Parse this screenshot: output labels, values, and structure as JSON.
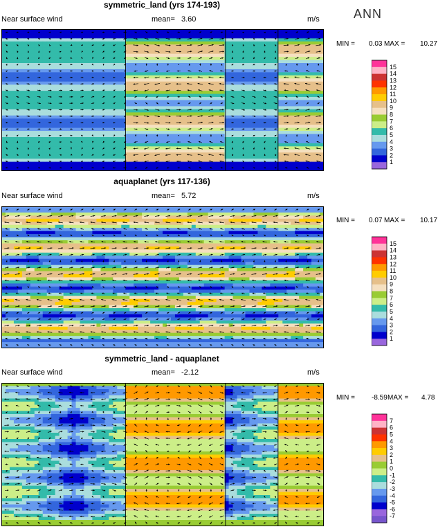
{
  "season": "ANN",
  "panels": [
    {
      "title": "symmetric_land (yrs 174-193)",
      "field": "Near surface wind",
      "mean_label": "mean=",
      "mean": "3.60",
      "units": "m/s",
      "min_label": "MIN =",
      "min": "0.03",
      "max_label": "MAX =",
      "max": "10.27",
      "levels": [
        "15",
        "14",
        "13",
        "12",
        "11",
        "10",
        "9",
        "8",
        "7",
        "6",
        "5",
        "4",
        "3",
        "2",
        "1"
      ],
      "colors": [
        "#ff3399",
        "#ffb3c6",
        "#cc3333",
        "#ff3300",
        "#ff9900",
        "#ffcc00",
        "#e6c08a",
        "#f5e0c0",
        "#99cc33",
        "#ccee88",
        "#33bbaa",
        "#aadddd",
        "#6699ee",
        "#3366dd",
        "#0000cc",
        "#9966dd"
      ]
    },
    {
      "title": "aquaplanet (yrs 117-136)",
      "field": "Near surface wind",
      "mean_label": "mean=",
      "mean": "5.72",
      "units": "m/s",
      "min_label": "MIN =",
      "min": "0.07",
      "max_label": "MAX =",
      "max": "10.17",
      "levels": [
        "15",
        "14",
        "13",
        "12",
        "11",
        "10",
        "9",
        "8",
        "7",
        "6",
        "5",
        "4",
        "3",
        "2",
        "1"
      ],
      "colors": [
        "#ff3399",
        "#ffb3c6",
        "#cc3333",
        "#ff3300",
        "#ff9900",
        "#ffcc00",
        "#e6c08a",
        "#f5e0c0",
        "#99cc33",
        "#ccee88",
        "#33bbaa",
        "#aadddd",
        "#6699ee",
        "#3366dd",
        "#0000cc",
        "#9966dd"
      ]
    },
    {
      "title": "symmetric_land - aquaplanet",
      "field": "Near surface wind",
      "mean_label": "mean=",
      "mean": "-2.12",
      "units": "m/s",
      "min_label": "MIN =",
      "min": "-8.59",
      "max_label": "MAX =",
      "max": "4.78",
      "levels": [
        "7",
        "6",
        "5",
        "4",
        "3",
        "2",
        "1",
        "0",
        "-1",
        "-2",
        "-3",
        "-4",
        "-5",
        "-6",
        "-7"
      ],
      "colors": [
        "#ff3399",
        "#ffb3c6",
        "#cc3333",
        "#ff3300",
        "#ff9900",
        "#ffcc00",
        "#e6c08a",
        "#99cc33",
        "#ccee88",
        "#33bbaa",
        "#aadddd",
        "#6699ee",
        "#3366dd",
        "#0000cc",
        "#9966dd",
        "#7755cc"
      ]
    }
  ],
  "chart_data": [
    {
      "type": "heatmap",
      "title": "symmetric_land (yrs 174-193)",
      "subtitle": "Near surface wind",
      "units": "m/s",
      "mean": 3.6,
      "min": 0.03,
      "max": 10.27,
      "colorbar_levels": [
        1,
        2,
        3,
        4,
        5,
        6,
        7,
        8,
        9,
        10,
        11,
        12,
        13,
        14,
        15
      ]
    },
    {
      "type": "heatmap",
      "title": "aquaplanet (yrs 117-136)",
      "subtitle": "Near surface wind",
      "units": "m/s",
      "mean": 5.72,
      "min": 0.07,
      "max": 10.17,
      "colorbar_levels": [
        1,
        2,
        3,
        4,
        5,
        6,
        7,
        8,
        9,
        10,
        11,
        12,
        13,
        14,
        15
      ]
    },
    {
      "type": "heatmap",
      "title": "symmetric_land - aquaplanet",
      "subtitle": "Near surface wind",
      "units": "m/s",
      "mean": -2.12,
      "min": -8.59,
      "max": 4.78,
      "colorbar_levels": [
        -7,
        -6,
        -5,
        -4,
        -3,
        -2,
        -1,
        0,
        1,
        2,
        3,
        4,
        5,
        6,
        7
      ]
    }
  ]
}
